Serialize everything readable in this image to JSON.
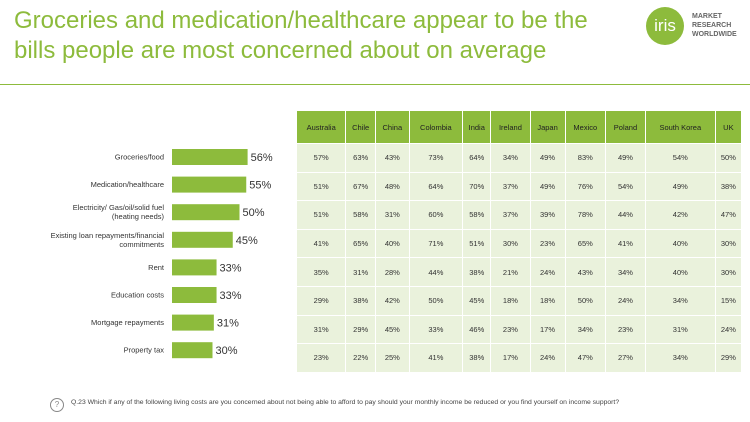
{
  "title": "Groceries and medication/healthcare appear to be the bills people are most concerned about on average",
  "logo": {
    "mark": "iris",
    "line1": "MARKET",
    "line2": "RESEARCH",
    "line3": "WORLDWIDE"
  },
  "footer": {
    "icon": "question-icon",
    "text": "Q.23 Which if any of the following living costs are you concerned about not being able to afford to pay should your monthly income be reduced or you find yourself on income support?"
  },
  "colors": {
    "accent": "#8dbb3c",
    "cell": "#eaf2dc"
  },
  "chart_data": {
    "type": "bar",
    "orientation": "horizontal",
    "categories": [
      "Groceries/food",
      "Medication/healthcare",
      "Electricity/ Gas/oil/solid fuel (heating needs)",
      "Existing loan repayments/financial commitments",
      "Rent",
      "Education costs",
      "Mortgage repayments",
      "Property tax"
    ],
    "values": [
      56,
      55,
      50,
      45,
      33,
      33,
      31,
      30
    ],
    "value_labels": [
      "56%",
      "55%",
      "50%",
      "45%",
      "33%",
      "33%",
      "31%",
      "30%"
    ],
    "ylim": [
      0,
      100
    ],
    "color": "#8dbb3c"
  },
  "table": {
    "headers": [
      "Australia",
      "Chile",
      "China",
      "Colombia",
      "India",
      "Ireland",
      "Japan",
      "Mexico",
      "Poland",
      "South Korea",
      "UK"
    ],
    "rows": [
      [
        "57%",
        "63%",
        "43%",
        "73%",
        "64%",
        "34%",
        "49%",
        "83%",
        "49%",
        "54%",
        "50%"
      ],
      [
        "51%",
        "67%",
        "48%",
        "64%",
        "70%",
        "37%",
        "49%",
        "76%",
        "54%",
        "49%",
        "38%"
      ],
      [
        "51%",
        "58%",
        "31%",
        "60%",
        "58%",
        "37%",
        "39%",
        "78%",
        "44%",
        "42%",
        "47%"
      ],
      [
        "41%",
        "65%",
        "40%",
        "71%",
        "51%",
        "30%",
        "23%",
        "65%",
        "41%",
        "40%",
        "30%"
      ],
      [
        "35%",
        "31%",
        "28%",
        "44%",
        "38%",
        "21%",
        "24%",
        "43%",
        "34%",
        "40%",
        "30%"
      ],
      [
        "29%",
        "38%",
        "42%",
        "50%",
        "45%",
        "18%",
        "18%",
        "50%",
        "24%",
        "34%",
        "15%"
      ],
      [
        "31%",
        "29%",
        "45%",
        "33%",
        "46%",
        "23%",
        "17%",
        "34%",
        "23%",
        "31%",
        "24%"
      ],
      [
        "23%",
        "22%",
        "25%",
        "41%",
        "38%",
        "17%",
        "24%",
        "47%",
        "27%",
        "34%",
        "29%"
      ]
    ]
  }
}
